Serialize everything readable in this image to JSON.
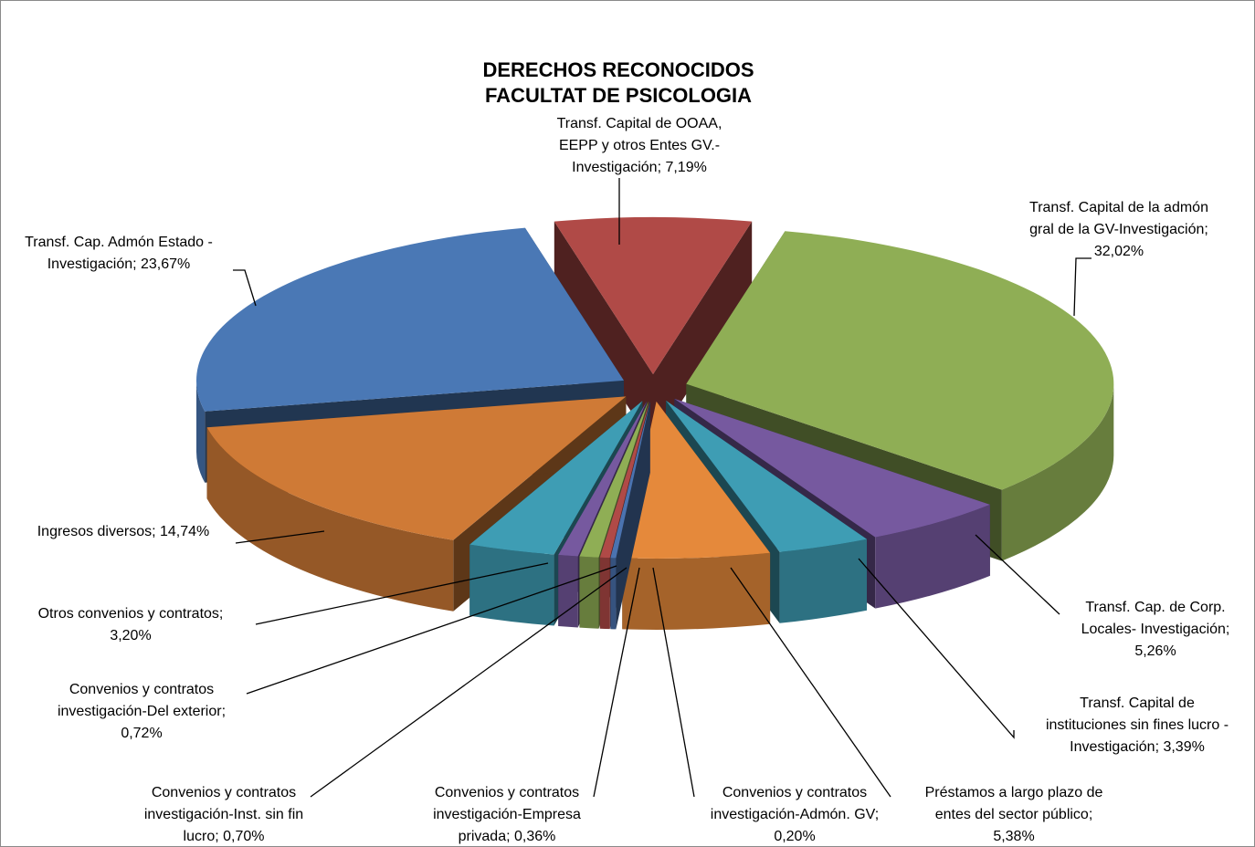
{
  "chart_data": {
    "type": "pie3d",
    "title": [
      "DERECHOS RECONOCIDOS",
      "FACULTAT DE PSICOLOGIA"
    ],
    "labels": [
      [
        "Transf. Capital de OOAA,",
        "EEPP y otros Entes GV.-",
        "Investigación; 7,19%"
      ],
      [
        "Transf. Capital de la admón",
        "gral de la GV-Investigación;",
        "32,02%"
      ],
      [
        "Transf. Cap. de Corp.",
        "Locales- Investigación;",
        "5,26%"
      ],
      [
        "Transf. Capital de",
        "instituciones sin fines lucro -",
        "Investigación; 3,39%"
      ],
      [
        "Préstamos a largo plazo de",
        "entes del sector público;",
        "5,38%"
      ],
      [
        "Convenios y contratos",
        "investigación-Admón. GV;",
        "0,20%"
      ],
      [
        "Convenios y contratos",
        "investigación-Empresa",
        "privada; 0,36%"
      ],
      [
        "Convenios y contratos",
        "investigación-Inst. sin fin",
        "lucro; 0,70%"
      ],
      [
        "Convenios y contratos",
        "investigación-Del exterior;",
        "0,72%"
      ],
      [
        "Otros convenios y contratos;",
        "3,20%"
      ],
      [
        "Ingresos diversos; 14,74%"
      ],
      [
        "Transf. Cap. Admón Estado -",
        "Investigación; 23,67%"
      ]
    ],
    "values": [
      7.19,
      32.02,
      5.26,
      3.39,
      5.38,
      0.2,
      0.36,
      0.7,
      0.72,
      3.2,
      14.74,
      23.67
    ],
    "colors": [
      "#b04a47",
      "#8fae55",
      "#76599f",
      "#3e9db4",
      "#e5893b",
      "#4b73b0",
      "#b04a47",
      "#8fae55",
      "#76599f",
      "#3e9db4",
      "#cf7a36",
      "#4a78b5"
    ]
  }
}
